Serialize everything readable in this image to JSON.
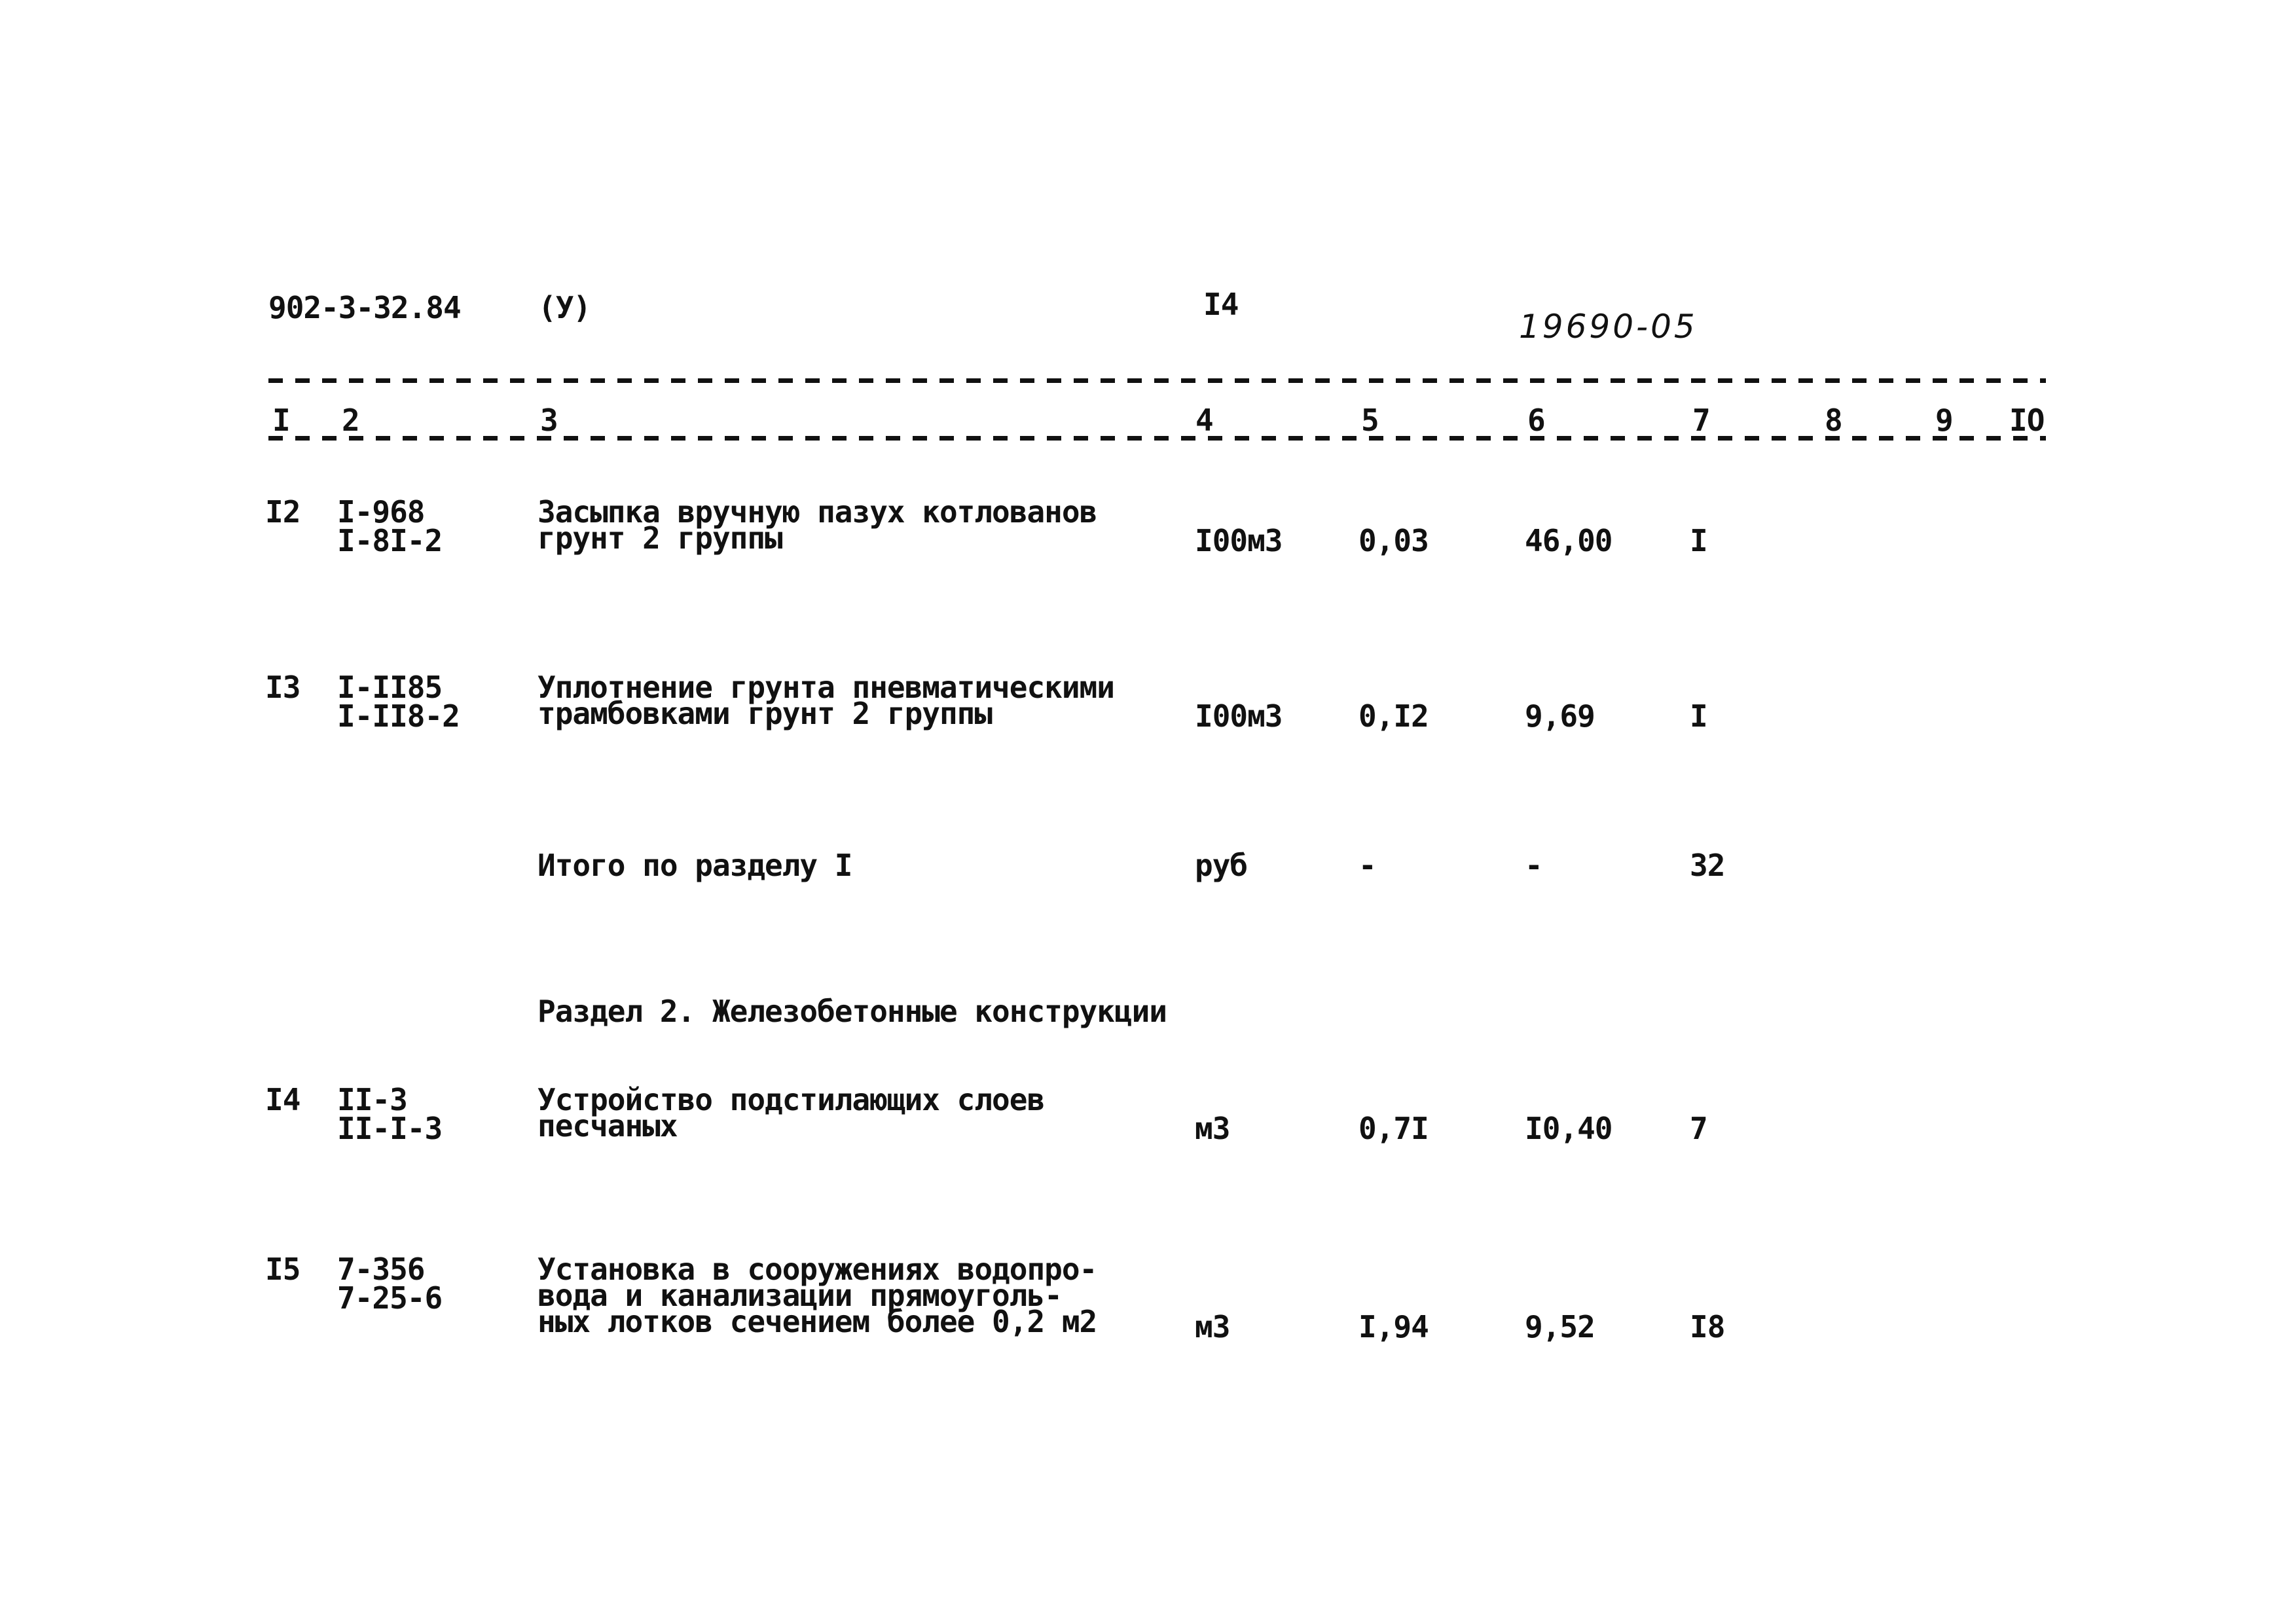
{
  "header": {
    "doc_code": "902-3-32.84",
    "mark": "(У)",
    "page": "I4",
    "handwritten_number": "19690-05"
  },
  "columns": [
    "I",
    "2",
    "3",
    "4",
    "5",
    "6",
    "7",
    "8",
    "9",
    "IO"
  ],
  "rows": [
    {
      "num": "I2",
      "code1": "I-968",
      "code2": "I-8I-2",
      "desc": [
        "Засыпка вручную пазух котлованов",
        "грунт 2 группы"
      ],
      "unit": "I00м3",
      "qty": "0,03",
      "price": "46,00",
      "total": "I"
    },
    {
      "num": "I3",
      "code1": "I-II85",
      "code2": "I-II8-2",
      "desc": [
        "Уплотнение грунта пневматическими",
        "трамбовками грунт 2 группы"
      ],
      "unit": "I00м3",
      "qty": "0,I2",
      "price": "9,69",
      "total": "I"
    },
    {
      "num": "",
      "code1": "",
      "code2": "",
      "desc": [
        "Итого по разделу I"
      ],
      "unit": "руб",
      "qty": "-",
      "price": "-",
      "total": "32"
    },
    {
      "section": "Раздел 2. Железобетонные конструкции"
    },
    {
      "num": "I4",
      "code1": "II-3",
      "code2": "II-I-3",
      "desc": [
        "Устройство подстилающих слоев",
        "песчаных"
      ],
      "unit": "м3",
      "qty": "0,7I",
      "price": "I0,40",
      "total": "7"
    },
    {
      "num": "I5",
      "code1": "7-356",
      "code2": "7-25-6",
      "desc": [
        "Установка в сооружениях водопро-",
        "вода и канализации прямоуголь-",
        "ных лотков сечением более 0,2 м2"
      ],
      "unit": "м3",
      "qty": "I,94",
      "price": "9,52",
      "total": "I8"
    }
  ]
}
